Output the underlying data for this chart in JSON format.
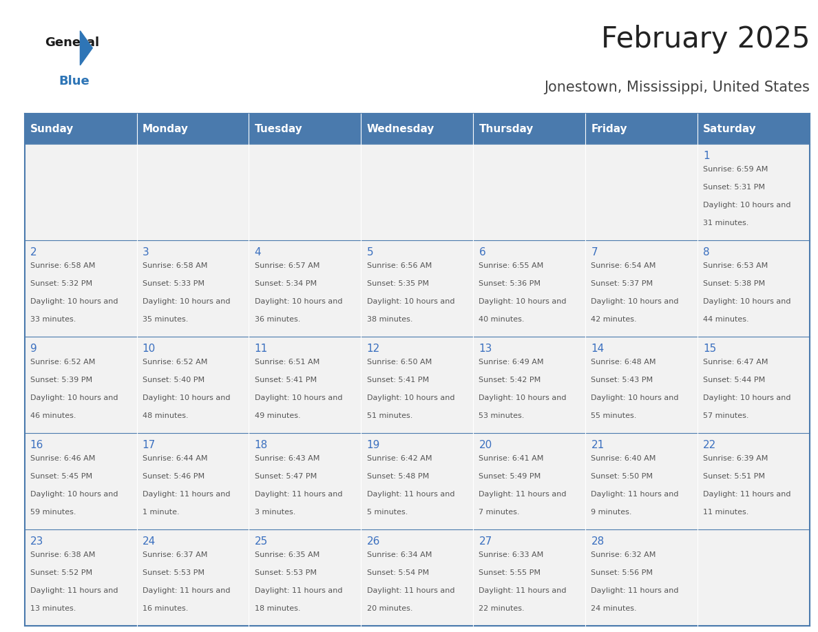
{
  "title": "February 2025",
  "subtitle": "Jonestown, Mississippi, United States",
  "days_of_week": [
    "Sunday",
    "Monday",
    "Tuesday",
    "Wednesday",
    "Thursday",
    "Friday",
    "Saturday"
  ],
  "header_bg": "#4a7aad",
  "header_text": "#ffffff",
  "cell_bg_light": "#f2f2f2",
  "day_number_color": "#3a6fbf",
  "info_text_color": "#555555",
  "border_color": "#4a7aad",
  "title_color": "#222222",
  "subtitle_color": "#444444",
  "calendar_data": [
    [
      {
        "day": null,
        "sunrise": null,
        "sunset": null,
        "daylight": null
      },
      {
        "day": null,
        "sunrise": null,
        "sunset": null,
        "daylight": null
      },
      {
        "day": null,
        "sunrise": null,
        "sunset": null,
        "daylight": null
      },
      {
        "day": null,
        "sunrise": null,
        "sunset": null,
        "daylight": null
      },
      {
        "day": null,
        "sunrise": null,
        "sunset": null,
        "daylight": null
      },
      {
        "day": null,
        "sunrise": null,
        "sunset": null,
        "daylight": null
      },
      {
        "day": 1,
        "sunrise": "6:59 AM",
        "sunset": "5:31 PM",
        "daylight": "10 hours and 31 minutes."
      }
    ],
    [
      {
        "day": 2,
        "sunrise": "6:58 AM",
        "sunset": "5:32 PM",
        "daylight": "10 hours and 33 minutes."
      },
      {
        "day": 3,
        "sunrise": "6:58 AM",
        "sunset": "5:33 PM",
        "daylight": "10 hours and 35 minutes."
      },
      {
        "day": 4,
        "sunrise": "6:57 AM",
        "sunset": "5:34 PM",
        "daylight": "10 hours and 36 minutes."
      },
      {
        "day": 5,
        "sunrise": "6:56 AM",
        "sunset": "5:35 PM",
        "daylight": "10 hours and 38 minutes."
      },
      {
        "day": 6,
        "sunrise": "6:55 AM",
        "sunset": "5:36 PM",
        "daylight": "10 hours and 40 minutes."
      },
      {
        "day": 7,
        "sunrise": "6:54 AM",
        "sunset": "5:37 PM",
        "daylight": "10 hours and 42 minutes."
      },
      {
        "day": 8,
        "sunrise": "6:53 AM",
        "sunset": "5:38 PM",
        "daylight": "10 hours and 44 minutes."
      }
    ],
    [
      {
        "day": 9,
        "sunrise": "6:52 AM",
        "sunset": "5:39 PM",
        "daylight": "10 hours and 46 minutes."
      },
      {
        "day": 10,
        "sunrise": "6:52 AM",
        "sunset": "5:40 PM",
        "daylight": "10 hours and 48 minutes."
      },
      {
        "day": 11,
        "sunrise": "6:51 AM",
        "sunset": "5:41 PM",
        "daylight": "10 hours and 49 minutes."
      },
      {
        "day": 12,
        "sunrise": "6:50 AM",
        "sunset": "5:41 PM",
        "daylight": "10 hours and 51 minutes."
      },
      {
        "day": 13,
        "sunrise": "6:49 AM",
        "sunset": "5:42 PM",
        "daylight": "10 hours and 53 minutes."
      },
      {
        "day": 14,
        "sunrise": "6:48 AM",
        "sunset": "5:43 PM",
        "daylight": "10 hours and 55 minutes."
      },
      {
        "day": 15,
        "sunrise": "6:47 AM",
        "sunset": "5:44 PM",
        "daylight": "10 hours and 57 minutes."
      }
    ],
    [
      {
        "day": 16,
        "sunrise": "6:46 AM",
        "sunset": "5:45 PM",
        "daylight": "10 hours and 59 minutes."
      },
      {
        "day": 17,
        "sunrise": "6:44 AM",
        "sunset": "5:46 PM",
        "daylight": "11 hours and 1 minute."
      },
      {
        "day": 18,
        "sunrise": "6:43 AM",
        "sunset": "5:47 PM",
        "daylight": "11 hours and 3 minutes."
      },
      {
        "day": 19,
        "sunrise": "6:42 AM",
        "sunset": "5:48 PM",
        "daylight": "11 hours and 5 minutes."
      },
      {
        "day": 20,
        "sunrise": "6:41 AM",
        "sunset": "5:49 PM",
        "daylight": "11 hours and 7 minutes."
      },
      {
        "day": 21,
        "sunrise": "6:40 AM",
        "sunset": "5:50 PM",
        "daylight": "11 hours and 9 minutes."
      },
      {
        "day": 22,
        "sunrise": "6:39 AM",
        "sunset": "5:51 PM",
        "daylight": "11 hours and 11 minutes."
      }
    ],
    [
      {
        "day": 23,
        "sunrise": "6:38 AM",
        "sunset": "5:52 PM",
        "daylight": "11 hours and 13 minutes."
      },
      {
        "day": 24,
        "sunrise": "6:37 AM",
        "sunset": "5:53 PM",
        "daylight": "11 hours and 16 minutes."
      },
      {
        "day": 25,
        "sunrise": "6:35 AM",
        "sunset": "5:53 PM",
        "daylight": "11 hours and 18 minutes."
      },
      {
        "day": 26,
        "sunrise": "6:34 AM",
        "sunset": "5:54 PM",
        "daylight": "11 hours and 20 minutes."
      },
      {
        "day": 27,
        "sunrise": "6:33 AM",
        "sunset": "5:55 PM",
        "daylight": "11 hours and 22 minutes."
      },
      {
        "day": 28,
        "sunrise": "6:32 AM",
        "sunset": "5:56 PM",
        "daylight": "11 hours and 24 minutes."
      },
      {
        "day": null,
        "sunrise": null,
        "sunset": null,
        "daylight": null
      }
    ]
  ]
}
